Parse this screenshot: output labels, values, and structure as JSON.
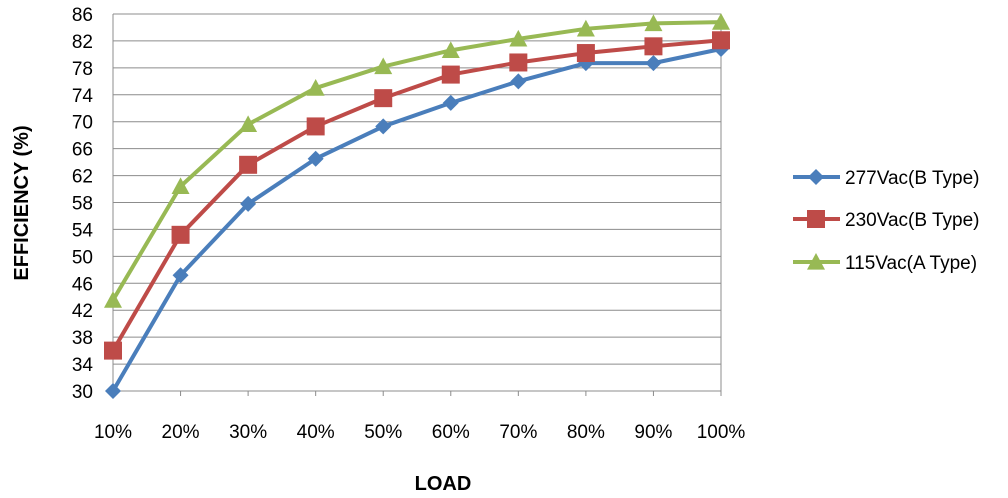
{
  "chart_data": {
    "type": "line",
    "title": "",
    "xlabel": "LOAD",
    "ylabel": "EFFICIENCY (%)",
    "categories": [
      "10%",
      "20%",
      "30%",
      "40%",
      "50%",
      "60%",
      "70%",
      "80%",
      "90%",
      "100%"
    ],
    "ylim": [
      30,
      86
    ],
    "yticks": [
      30,
      34,
      38,
      42,
      46,
      50,
      54,
      58,
      62,
      66,
      70,
      74,
      78,
      82,
      86
    ],
    "grid": true,
    "legend_position": "right",
    "series": [
      {
        "name": "277Vac(B Type)",
        "color": "#4a7ebb",
        "marker": "diamond",
        "values": [
          30,
          47.2,
          57.8,
          64.5,
          69.3,
          72.8,
          76.0,
          78.7,
          78.7,
          80.8
        ]
      },
      {
        "name": "230Vac(B Type)",
        "color": "#be4b48",
        "marker": "square",
        "values": [
          36.0,
          53.2,
          63.6,
          69.3,
          73.5,
          77.0,
          78.8,
          80.2,
          81.2,
          82.1
        ]
      },
      {
        "name": "115Vac(A Type)",
        "color": "#98b954",
        "marker": "triangle",
        "values": [
          43.5,
          60.4,
          69.6,
          75.0,
          78.2,
          80.6,
          82.3,
          83.8,
          84.6,
          84.8
        ]
      }
    ]
  }
}
